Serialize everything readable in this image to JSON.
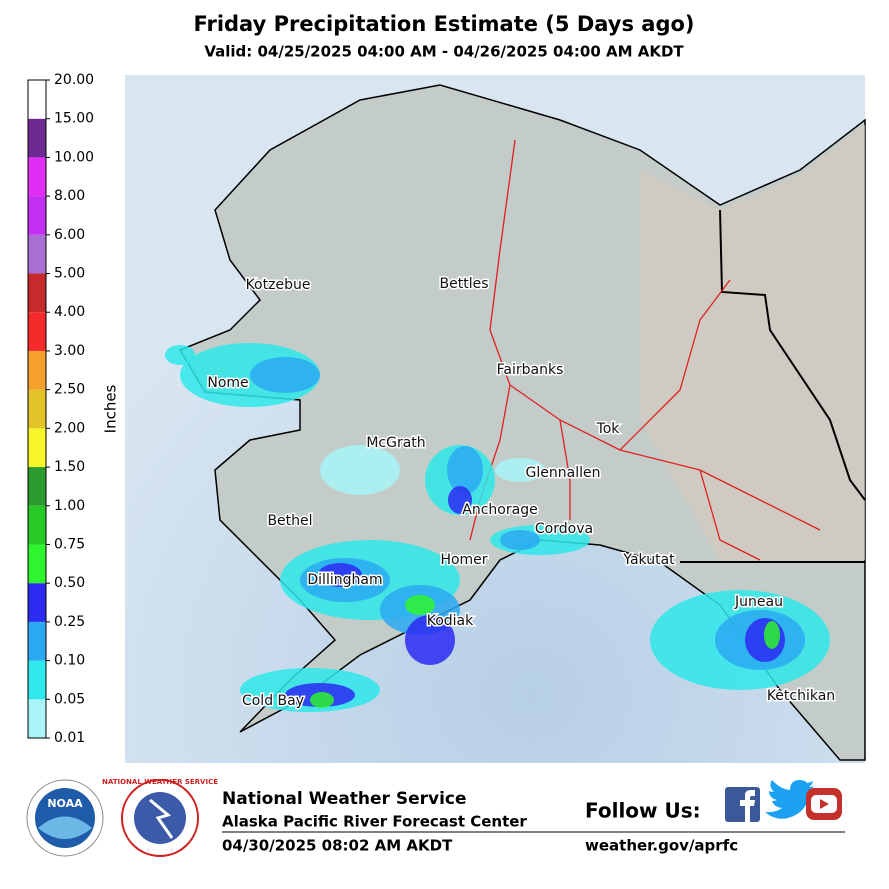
{
  "header": {
    "title": "Friday Precipitation Estimate (5 Days ago)",
    "subtitle": "Valid: 04/25/2025 04:00 AM - 04/26/2025 04:00 AM AKDT"
  },
  "colorbar": {
    "label": "Inches",
    "ticks": [
      "0.01",
      "0.05",
      "0.10",
      "0.25",
      "0.50",
      "0.75",
      "1.00",
      "1.50",
      "2.00",
      "2.50",
      "3.00",
      "4.00",
      "5.00",
      "6.00",
      "8.00",
      "10.00",
      "15.00",
      "20.00"
    ],
    "colors": [
      "#a8f4f8",
      "#2ee8ea",
      "#2aa9f2",
      "#2b2bf2",
      "#2ef52e",
      "#27c927",
      "#2b9a2f",
      "#f5f52a",
      "#e2c42a",
      "#f5a02c",
      "#f52a2a",
      "#c62a2a",
      "#a96fd4",
      "#c22ef2",
      "#e12ef4",
      "#6e2a92",
      "#ffffff"
    ]
  },
  "map": {
    "cities": [
      "Kotzebue",
      "Bettles",
      "Nome",
      "Fairbanks",
      "McGrath",
      "Tok",
      "Glennallen",
      "Anchorage",
      "Bethel",
      "Cordova",
      "Homer",
      "Yakutat",
      "Dillingham",
      "Juneau",
      "Kodiak",
      "Cold Bay",
      "Ketchikan"
    ]
  },
  "footer": {
    "logo_noaa": "NOAA",
    "logo_nws": "NATIONAL WEATHER SERVICE",
    "organization": "National Weather Service",
    "office": "Alaska Pacific River Forecast Center",
    "issued": "04/30/2025 08:02 AM AKDT",
    "follow": "Follow Us:",
    "url": "weather.gov/aprfc"
  }
}
